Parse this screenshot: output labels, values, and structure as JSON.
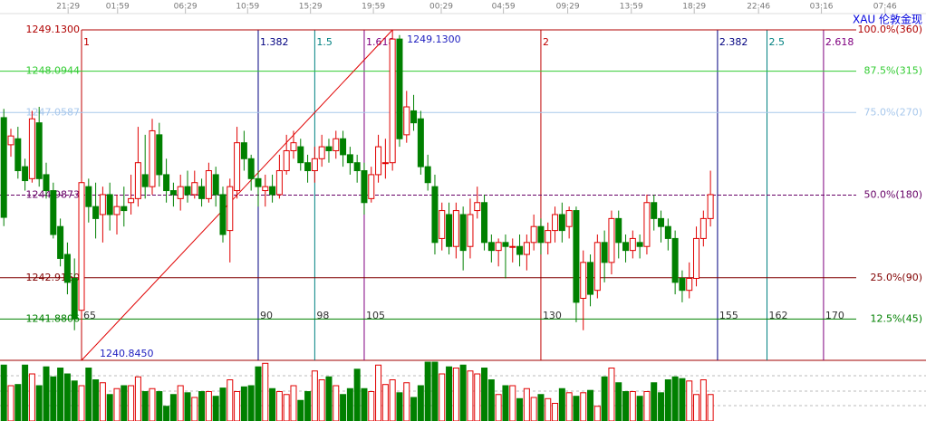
{
  "chart_data": {
    "type": "candlestick",
    "title": "XAU 伦敦金现",
    "xlim": [
      53.46,
      184.5
    ],
    "ylim": [
      1240.845,
      1249.13
    ],
    "xticks": [
      {
        "value": 63.1,
        "label": "21:29"
      },
      {
        "value": 70.1,
        "label": "01:59"
      },
      {
        "value": 79.7,
        "label": "06:29"
      },
      {
        "value": 88.5,
        "label": "10:59"
      },
      {
        "value": 97.4,
        "label": "15:29"
      },
      {
        "value": 106.3,
        "label": "19:59"
      },
      {
        "value": 115.9,
        "label": "00:29"
      },
      {
        "value": 124.7,
        "label": "04:59"
      },
      {
        "value": 133.8,
        "label": "09:29"
      },
      {
        "value": 142.8,
        "label": "13:59"
      },
      {
        "value": 151.7,
        "label": "18:29"
      },
      {
        "value": 160.8,
        "label": "22:46"
      },
      {
        "value": 169.7,
        "label": "03:16"
      },
      {
        "value": 178.7,
        "label": "07:46"
      }
    ],
    "levels": [
      {
        "value": 1249.13,
        "label": "1249.1300",
        "ratio_label": "100.0%(360)",
        "color": "#b00000"
      },
      {
        "value": 1248.0944,
        "label": "1248.0944",
        "ratio_label": "87.5%(315)",
        "color": "#33cc33"
      },
      {
        "value": 1247.0587,
        "label": "1247.0587",
        "ratio_label": "75.0%(270)",
        "color": "#a8c8ec"
      },
      {
        "value": 1244.9873,
        "label": "1244.9873",
        "ratio_label": "50.0%(180)",
        "color": "#660066"
      },
      {
        "value": 1242.916,
        "label": "1242.9160",
        "ratio_label": "25.0%(90)",
        "color": "#800000"
      },
      {
        "value": 1241.8806,
        "label": "1241.8806",
        "ratio_label": "12.5%(45)",
        "color": "#008000"
      }
    ],
    "time_zones": [
      {
        "bar": 65,
        "ratio": "1",
        "color": "#c00000"
      },
      {
        "bar": 90,
        "ratio": "1.382",
        "color": "#000080"
      },
      {
        "bar": 98,
        "ratio": "1.5",
        "color": "#008080"
      },
      {
        "bar": 105,
        "ratio": "1.618",
        "color": "#800080"
      },
      {
        "bar": 130,
        "ratio": "2",
        "color": "#c00000"
      },
      {
        "bar": 155,
        "ratio": "2.382",
        "color": "#000080"
      },
      {
        "bar": 162,
        "ratio": "2.5",
        "color": "#008080"
      },
      {
        "bar": 170,
        "ratio": "2.618",
        "color": "#800080"
      }
    ],
    "trend": {
      "color": "#e00000",
      "from": {
        "x": 65,
        "y": 1240.845,
        "label": "1240.8450"
      },
      "to": {
        "x": 109,
        "y": 1249.13,
        "label": "1249.1300"
      }
    },
    "up_color": "#e00000",
    "down_color": "#008000",
    "x": [
      54,
      55,
      56,
      57,
      58,
      59,
      60,
      61,
      62,
      63,
      64,
      65,
      66,
      67,
      68,
      69,
      70,
      71,
      72,
      73,
      74,
      75,
      76,
      77,
      78,
      79,
      80,
      81,
      82,
      83,
      84,
      85,
      86,
      87,
      88,
      89,
      90,
      91,
      92,
      93,
      94,
      95,
      96,
      97,
      98,
      99,
      100,
      101,
      102,
      103,
      104,
      105,
      106,
      107,
      108,
      109,
      110,
      111,
      112,
      113,
      114,
      115,
      116,
      117,
      118,
      119,
      120,
      121,
      122,
      123,
      124,
      125,
      126,
      127,
      128,
      129,
      130,
      131,
      132,
      133,
      134,
      135,
      136,
      137,
      138,
      139,
      140,
      141,
      142,
      143,
      144,
      145,
      146,
      147,
      148,
      149,
      150,
      151,
      152,
      153,
      154
    ],
    "ohlc": [
      [
        1246.93,
        1247.15,
        1244.21,
        1244.43
      ],
      [
        1246.25,
        1246.65,
        1245.95,
        1246.47
      ],
      [
        1246.4,
        1246.7,
        1245.4,
        1245.6
      ],
      [
        1245.7,
        1245.9,
        1245.1,
        1245.35
      ],
      [
        1245.4,
        1247.1,
        1245.3,
        1246.9
      ],
      [
        1246.8,
        1247.2,
        1245.2,
        1245.4
      ],
      [
        1245.5,
        1245.8,
        1244.9,
        1245.1
      ],
      [
        1245.1,
        1245.3,
        1243.9,
        1244.0
      ],
      [
        1244.2,
        1244.4,
        1243.2,
        1243.4
      ],
      [
        1243.5,
        1243.8,
        1242.5,
        1242.8
      ],
      [
        1242.9,
        1243.4,
        1241.6,
        1241.9
      ],
      [
        1242.1,
        1245.4,
        1241.8,
        1245.3
      ],
      [
        1245.2,
        1245.4,
        1244.3,
        1244.7
      ],
      [
        1244.7,
        1245.3,
        1243.9,
        1244.4
      ],
      [
        1244.5,
        1245.2,
        1243.8,
        1245.0
      ],
      [
        1245.0,
        1245.3,
        1244.1,
        1244.5
      ],
      [
        1244.5,
        1245.0,
        1244.0,
        1244.7
      ],
      [
        1244.7,
        1245.2,
        1244.2,
        1244.6
      ],
      [
        1244.8,
        1245.5,
        1244.5,
        1244.9
      ],
      [
        1244.9,
        1246.7,
        1244.7,
        1245.8
      ],
      [
        1245.5,
        1246.5,
        1244.9,
        1245.2
      ],
      [
        1245.2,
        1246.9,
        1245.0,
        1246.6
      ],
      [
        1246.5,
        1246.8,
        1245.2,
        1245.5
      ],
      [
        1245.5,
        1245.9,
        1244.8,
        1245.1
      ],
      [
        1245.1,
        1245.3,
        1244.7,
        1245.0
      ],
      [
        1244.9,
        1245.5,
        1244.6,
        1245.2
      ],
      [
        1245.2,
        1245.6,
        1244.8,
        1245.0
      ],
      [
        1245.0,
        1245.6,
        1244.9,
        1245.3
      ],
      [
        1245.2,
        1245.4,
        1244.7,
        1244.9
      ],
      [
        1244.9,
        1245.8,
        1244.8,
        1245.6
      ],
      [
        1245.5,
        1245.7,
        1244.7,
        1245.0
      ],
      [
        1245.0,
        1245.2,
        1243.8,
        1244.0
      ],
      [
        1244.1,
        1245.4,
        1243.3,
        1245.2
      ],
      [
        1245.1,
        1246.7,
        1244.9,
        1246.3
      ],
      [
        1246.3,
        1246.6,
        1245.6,
        1245.9
      ],
      [
        1245.9,
        1246.0,
        1245.1,
        1245.4
      ],
      [
        1245.4,
        1245.6,
        1244.7,
        1245.2
      ],
      [
        1245.1,
        1245.5,
        1244.7,
        1245.2
      ],
      [
        1245.2,
        1245.5,
        1244.8,
        1245.0
      ],
      [
        1245.0,
        1246.0,
        1244.9,
        1245.6
      ],
      [
        1245.6,
        1246.5,
        1245.5,
        1246.1
      ],
      [
        1246.1,
        1246.6,
        1245.9,
        1246.3
      ],
      [
        1246.2,
        1246.4,
        1245.6,
        1245.8
      ],
      [
        1245.8,
        1246.0,
        1245.3,
        1245.6
      ],
      [
        1245.6,
        1246.2,
        1245.3,
        1245.9
      ],
      [
        1245.9,
        1246.5,
        1245.7,
        1246.2
      ],
      [
        1246.2,
        1246.4,
        1245.8,
        1246.1
      ],
      [
        1246.1,
        1246.6,
        1245.9,
        1246.4
      ],
      [
        1246.4,
        1246.6,
        1245.7,
        1246.0
      ],
      [
        1246.0,
        1246.2,
        1245.5,
        1245.8
      ],
      [
        1245.8,
        1246.0,
        1245.3,
        1245.6
      ],
      [
        1245.6,
        1245.8,
        1244.5,
        1244.8
      ],
      [
        1244.9,
        1245.7,
        1244.8,
        1245.5
      ],
      [
        1245.5,
        1246.5,
        1245.3,
        1246.2
      ],
      [
        1245.8,
        1246.4,
        1245.4,
        1245.8
      ],
      [
        1245.8,
        1249.13,
        1245.6,
        1248.9
      ],
      [
        1248.9,
        1249.0,
        1246.2,
        1246.4
      ],
      [
        1246.5,
        1247.6,
        1246.3,
        1247.2
      ],
      [
        1247.1,
        1247.5,
        1246.6,
        1246.8
      ],
      [
        1246.9,
        1247.1,
        1245.5,
        1245.7
      ],
      [
        1245.7,
        1246.0,
        1245.1,
        1245.3
      ],
      [
        1245.2,
        1245.5,
        1243.5,
        1243.8
      ],
      [
        1243.9,
        1244.8,
        1243.6,
        1244.6
      ],
      [
        1244.5,
        1244.8,
        1243.5,
        1243.7
      ],
      [
        1243.7,
        1244.8,
        1243.4,
        1244.6
      ],
      [
        1244.5,
        1244.7,
        1243.1,
        1243.6
      ],
      [
        1243.7,
        1244.9,
        1243.4,
        1244.5
      ],
      [
        1244.6,
        1245.2,
        1244.4,
        1244.8
      ],
      [
        1244.8,
        1245.0,
        1243.6,
        1243.8
      ],
      [
        1243.8,
        1244.0,
        1243.3,
        1243.6
      ],
      [
        1243.6,
        1243.9,
        1243.2,
        1243.8
      ],
      [
        1243.8,
        1244.0,
        1242.9,
        1243.7
      ],
      [
        1243.7,
        1243.9,
        1243.3,
        1243.7
      ],
      [
        1243.7,
        1244.0,
        1243.2,
        1243.5
      ],
      [
        1243.5,
        1244.0,
        1243.1,
        1243.8
      ],
      [
        1243.8,
        1244.5,
        1243.6,
        1244.2
      ],
      [
        1244.2,
        1244.4,
        1243.5,
        1243.8
      ],
      [
        1243.8,
        1244.3,
        1243.5,
        1244.1
      ],
      [
        1244.1,
        1244.7,
        1243.8,
        1244.5
      ],
      [
        1244.5,
        1244.8,
        1243.8,
        1244.1
      ],
      [
        1244.2,
        1244.7,
        1243.9,
        1244.6
      ],
      [
        1244.6,
        1244.7,
        1241.8,
        1242.3
      ],
      [
        1242.4,
        1243.6,
        1241.6,
        1243.3
      ],
      [
        1243.3,
        1243.5,
        1242.2,
        1242.5
      ],
      [
        1242.6,
        1244.0,
        1242.4,
        1243.8
      ],
      [
        1243.8,
        1244.1,
        1242.8,
        1243.3
      ],
      [
        1243.3,
        1244.6,
        1243.0,
        1244.4
      ],
      [
        1244.4,
        1244.6,
        1243.4,
        1243.8
      ],
      [
        1243.8,
        1244.0,
        1243.3,
        1243.6
      ],
      [
        1243.6,
        1244.1,
        1243.4,
        1243.9
      ],
      [
        1243.8,
        1244.0,
        1243.4,
        1243.7
      ],
      [
        1243.7,
        1245.0,
        1243.5,
        1244.8
      ],
      [
        1244.8,
        1245.0,
        1244.1,
        1244.4
      ],
      [
        1244.4,
        1244.6,
        1243.8,
        1244.2
      ],
      [
        1244.2,
        1244.4,
        1243.6,
        1243.9
      ],
      [
        1243.9,
        1244.1,
        1242.5,
        1242.8
      ],
      [
        1242.9,
        1243.1,
        1242.3,
        1242.6
      ],
      [
        1242.6,
        1243.3,
        1242.4,
        1242.9
      ],
      [
        1242.9,
        1244.2,
        1242.7,
        1243.9
      ],
      [
        1243.9,
        1244.6,
        1243.7,
        1244.4
      ],
      [
        1244.4,
        1245.6,
        1244.2,
        1245.0
      ]
    ],
    "volume": {
      "ylim": [
        0,
        100
      ],
      "values": [
        95,
        60,
        62,
        95,
        80,
        60,
        92,
        75,
        90,
        80,
        68,
        60,
        90,
        70,
        65,
        45,
        55,
        60,
        60,
        75,
        50,
        55,
        50,
        25,
        45,
        60,
        48,
        40,
        50,
        50,
        42,
        56,
        70,
        50,
        58,
        60,
        92,
        98,
        55,
        50,
        45,
        60,
        35,
        50,
        85,
        70,
        75,
        60,
        45,
        55,
        88,
        55,
        50,
        95,
        62,
        70,
        48,
        65,
        40,
        60,
        100,
        100,
        80,
        92,
        90,
        95,
        85,
        80,
        90,
        70,
        45,
        60,
        60,
        38,
        55,
        40,
        45,
        38,
        30,
        55,
        48,
        42,
        48,
        52,
        25,
        75,
        90,
        65,
        50,
        50,
        42,
        50,
        65,
        48,
        70,
        75,
        72,
        68,
        45,
        70,
        45
      ]
    }
  }
}
